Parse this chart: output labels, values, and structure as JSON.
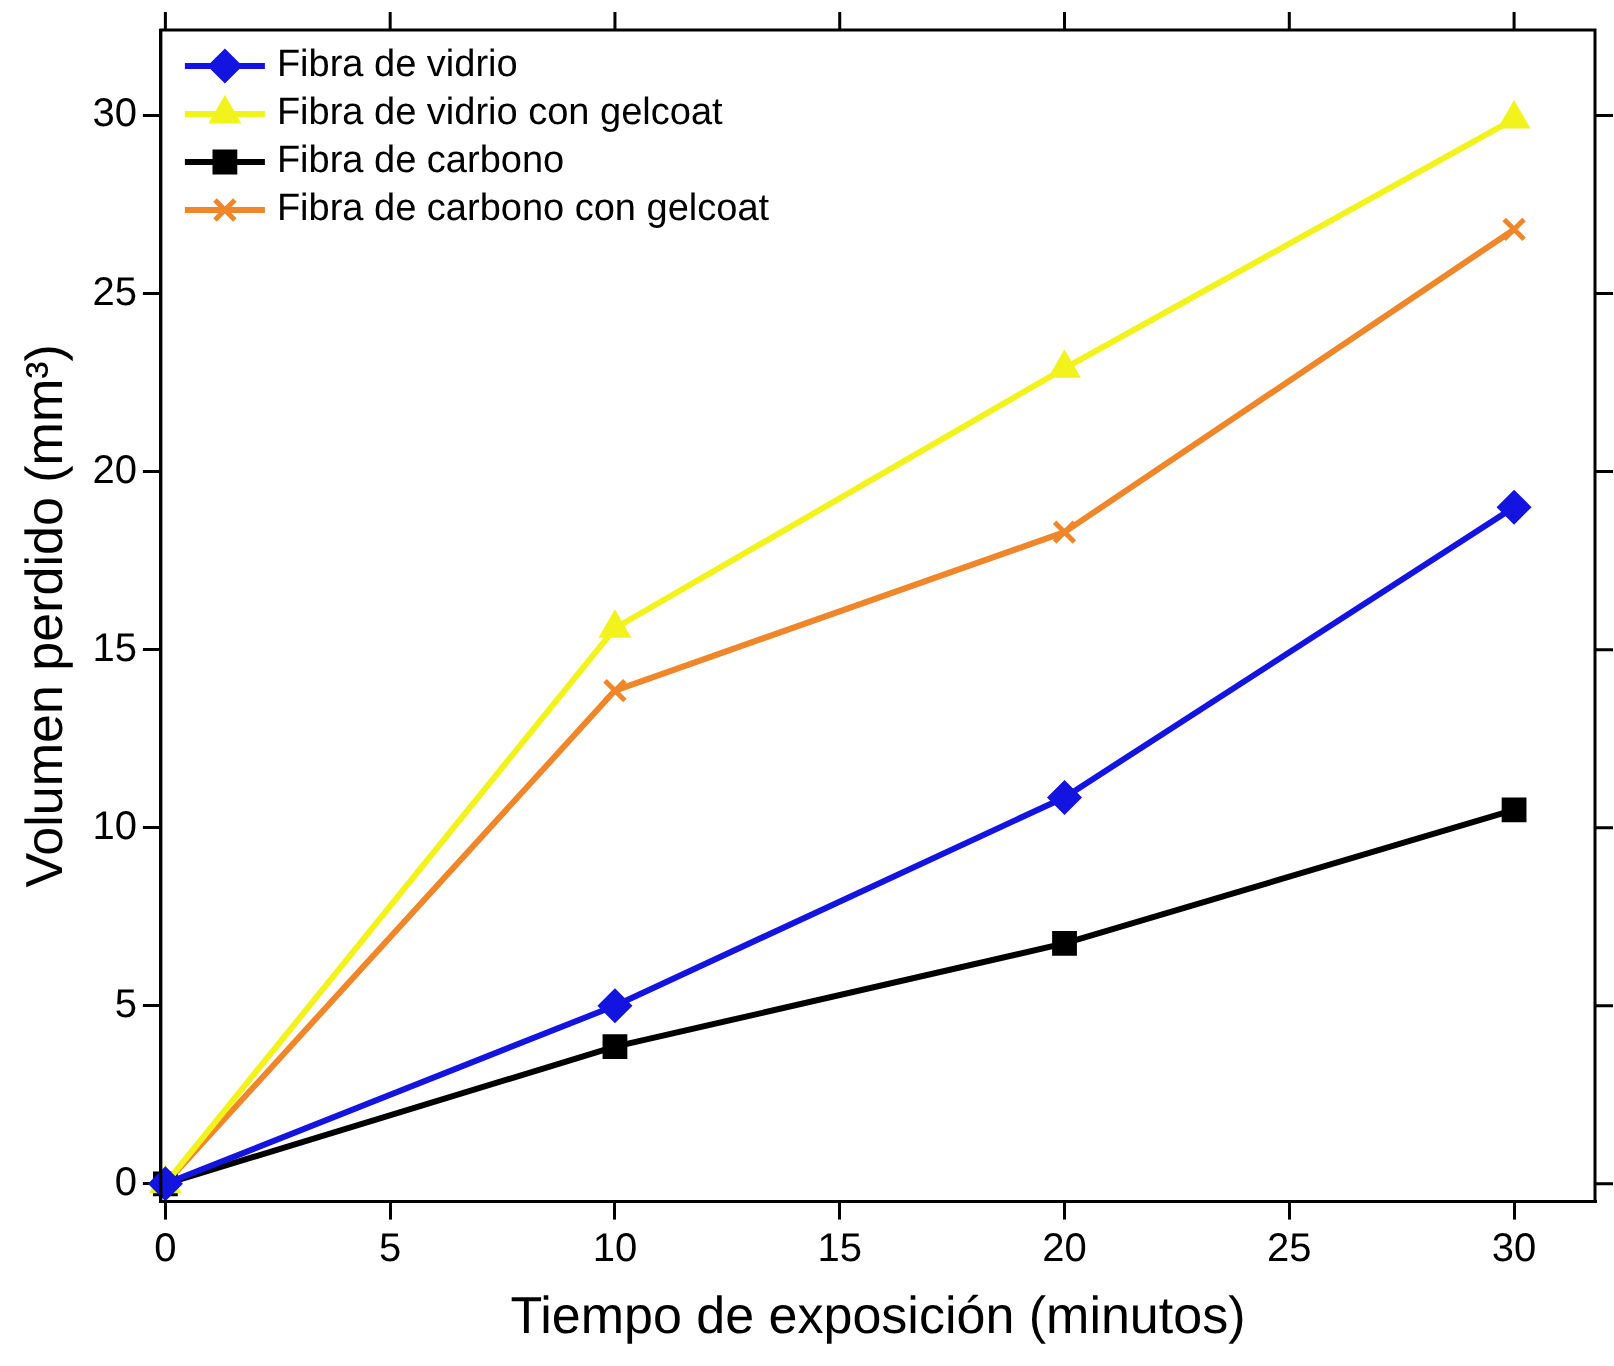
{
  "chart_data": {
    "type": "line",
    "xlabel": "Tiempo de exposición (minutos)",
    "ylabel": "Volumen perdido (mm³)",
    "x": [
      0,
      10,
      20,
      30
    ],
    "xlim": [
      -0.1,
      31.8
    ],
    "xticks": [
      0,
      5,
      10,
      15,
      20,
      25,
      30
    ],
    "ylim": [
      -0.5,
      32.4
    ],
    "yticks": [
      0,
      5,
      10,
      15,
      20,
      25,
      30
    ],
    "grid": false,
    "legend": "top left",
    "line_style": "solid",
    "series": [
      {
        "name": "Fibra de vidrio",
        "color": "#1414e0",
        "marker": "diamond",
        "values": [
          0,
          5.0,
          10.85,
          19.0
        ]
      },
      {
        "name": "Fibra de vidrio con gelcoat",
        "color": "#f2f21c",
        "marker": "triangle",
        "values": [
          0,
          15.6,
          22.9,
          29.9
        ]
      },
      {
        "name": "Fibra de carbono",
        "color": "#000000",
        "marker": "square",
        "values": [
          0,
          3.85,
          6.75,
          10.5
        ]
      },
      {
        "name": "Fibra de carbono con gelcoat",
        "color": "#f0862a",
        "marker": "cross",
        "values": [
          0,
          13.85,
          18.3,
          26.8
        ]
      }
    ]
  }
}
